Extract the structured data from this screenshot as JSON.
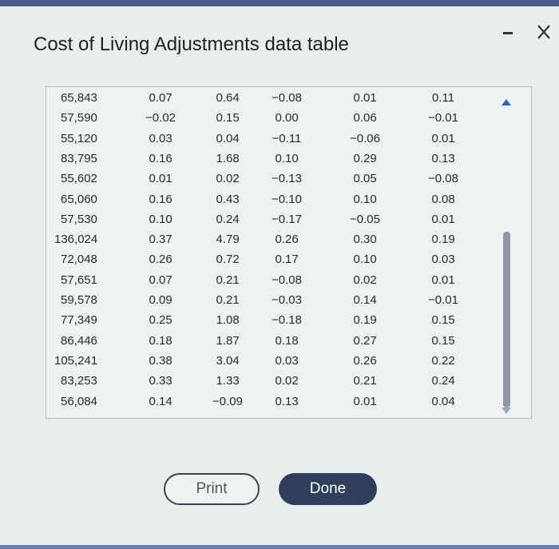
{
  "dialog": {
    "title": "Cost of Living Adjustments data table",
    "table": {
      "rows": [
        [
          "65,843",
          "0.07",
          "0.64",
          "−0.08",
          "0.01",
          "0.11"
        ],
        [
          "57,590",
          "−0.02",
          "0.15",
          "0.00",
          "0.06",
          "−0.01"
        ],
        [
          "55,120",
          "0.03",
          "0.04",
          "−0.11",
          "−0.06",
          "0.01"
        ],
        [
          "83,795",
          "0.16",
          "1.68",
          "0.10",
          "0.29",
          "0.13"
        ],
        [
          "55,602",
          "0.01",
          "0.02",
          "−0.13",
          "0.05",
          "−0.08"
        ],
        [
          "65,060",
          "0.16",
          "0.43",
          "−0.10",
          "0.10",
          "0.08"
        ],
        [
          "57,530",
          "0.10",
          "0.24",
          "−0.17",
          "−0.05",
          "0.01"
        ],
        [
          "136,024",
          "0.37",
          "4.79",
          "0.26",
          "0.30",
          "0.19"
        ],
        [
          "72,048",
          "0.26",
          "0.72",
          "0.17",
          "0.10",
          "0.03"
        ],
        [
          "57,651",
          "0.07",
          "0.21",
          "−0.08",
          "0.02",
          "0.01"
        ],
        [
          "59,578",
          "0.09",
          "0.21",
          "−0.03",
          "0.14",
          "−0.01"
        ],
        [
          "77,349",
          "0.25",
          "1.08",
          "−0.18",
          "0.19",
          "0.15"
        ],
        [
          "86,446",
          "0.18",
          "1.87",
          "0.18",
          "0.27",
          "0.15"
        ],
        [
          "105,241",
          "0.38",
          "3.04",
          "0.03",
          "0.26",
          "0.22"
        ],
        [
          "83,253",
          "0.33",
          "1.33",
          "0.02",
          "0.21",
          "0.24"
        ],
        [
          "56,084",
          "0.14",
          "−0.09",
          "0.13",
          "0.01",
          "0.04"
        ]
      ]
    },
    "buttons": {
      "print": "Print",
      "done": "Done"
    }
  }
}
